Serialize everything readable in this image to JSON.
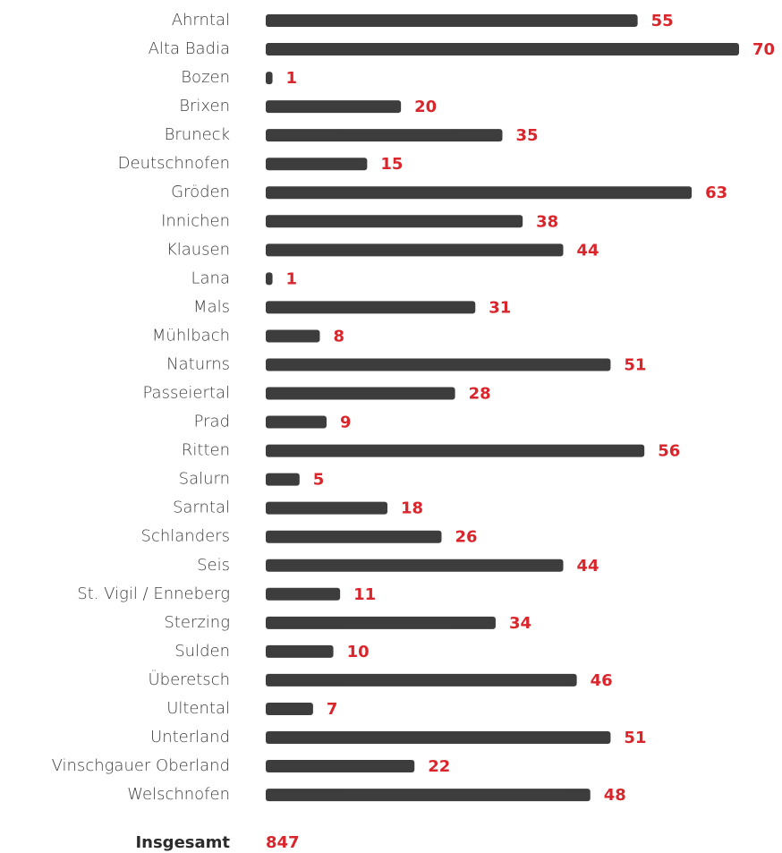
{
  "chart_data": {
    "type": "bar",
    "orientation": "horizontal",
    "categories": [
      "Ahrntal",
      "Alta Badia",
      "Bozen",
      "Brixen",
      "Bruneck",
      "Deutschnofen",
      "Gröden",
      "Innichen",
      "Klausen",
      "Lana",
      "Mals",
      "Mühlbach",
      "Naturns",
      "Passeiertal",
      "Prad",
      "Ritten",
      "Salurn",
      "Sarntal",
      "Schlanders",
      "Seis",
      "St. Vigil / Enneberg",
      "Sterzing",
      "Sulden",
      "Überetsch",
      "Ultental",
      "Unterland",
      "Vinschgauer Oberland",
      "Welschnofen"
    ],
    "values": [
      55,
      70,
      1,
      20,
      35,
      15,
      63,
      38,
      44,
      1,
      31,
      8,
      51,
      28,
      9,
      56,
      5,
      18,
      26,
      44,
      11,
      34,
      10,
      46,
      7,
      51,
      22,
      48
    ],
    "color": "#3d3d3d",
    "label_color": "#d9262c",
    "total_label": "Insgesamt",
    "total": 847
  }
}
